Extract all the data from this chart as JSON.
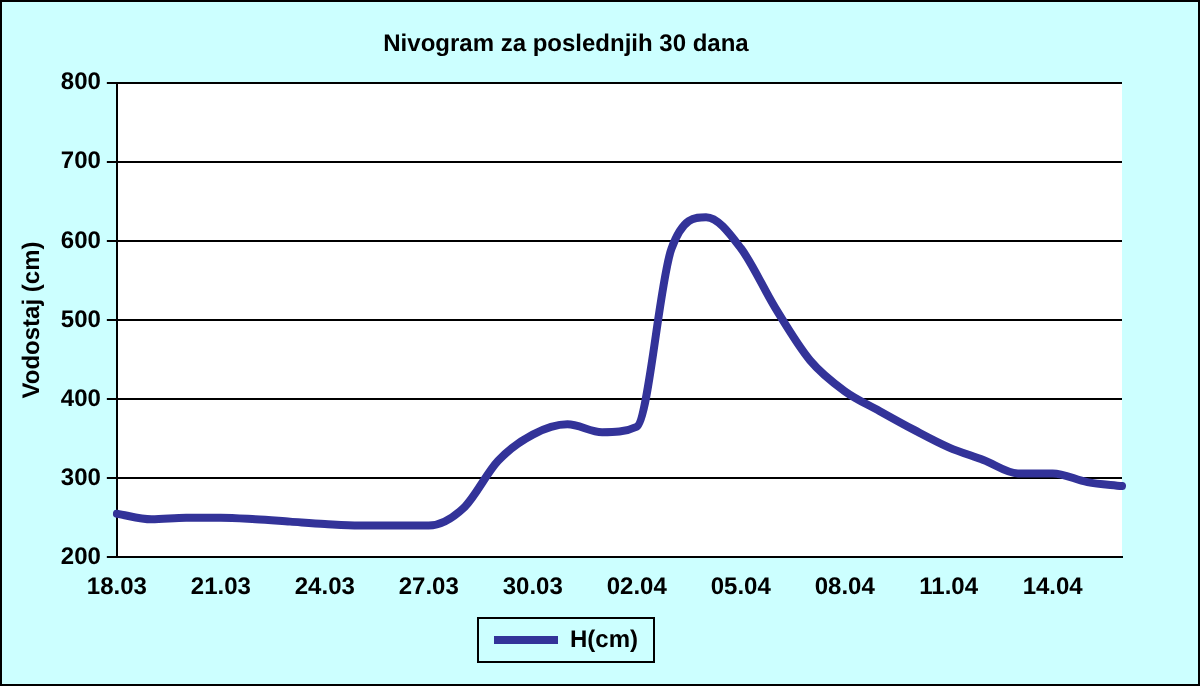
{
  "chart_data": {
    "type": "line",
    "title": "Nivogram za poslednjih 30 dana",
    "ylabel": "Vodostaj (cm)",
    "categories": [
      "18.03",
      null,
      null,
      "21.03",
      null,
      null,
      "24.03",
      null,
      null,
      "27.03",
      null,
      null,
      "30.03",
      null,
      null,
      "02.04",
      null,
      null,
      "05.04",
      null,
      null,
      "08.04",
      null,
      null,
      "11.04",
      null,
      null,
      "14.04",
      null,
      null
    ],
    "series": [
      {
        "name": "H(cm)",
        "color": "#333399",
        "values": [
          255,
          248,
          250,
          250,
          248,
          245,
          242,
          240,
          240,
          240,
          262,
          322,
          355,
          368,
          358,
          365,
          590,
          630,
          591,
          515,
          449,
          410,
          385,
          361,
          339,
          323,
          306,
          306,
          295,
          290
        ]
      }
    ],
    "ylim": [
      200,
      800
    ],
    "yticks": [
      200,
      300,
      400,
      500,
      600,
      700,
      800
    ],
    "grid": "y",
    "legend": "bottom",
    "marker": "none",
    "line_style": "solid"
  }
}
